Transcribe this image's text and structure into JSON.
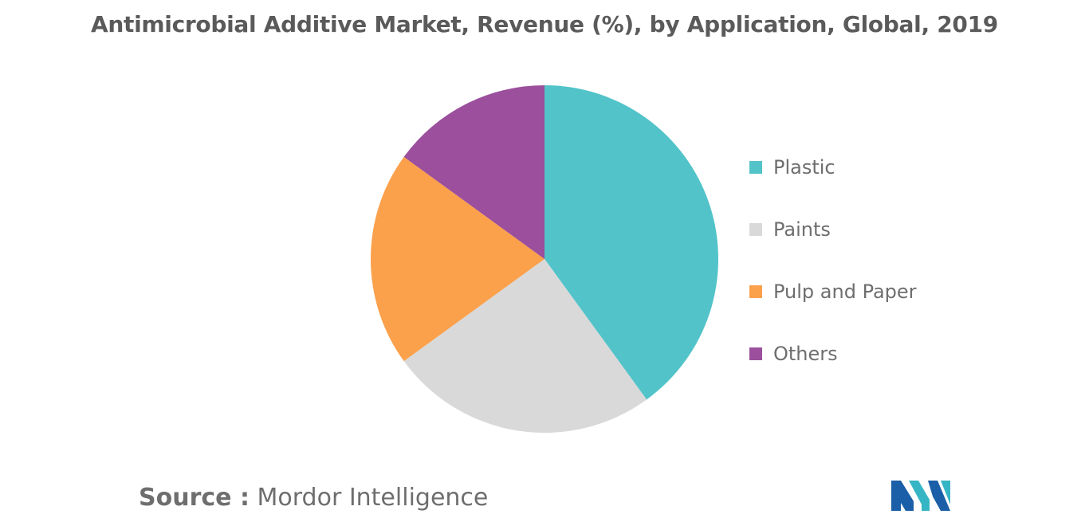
{
  "chart_data": {
    "type": "pie",
    "title": "Antimicrobial Additive Market, Revenue (%), by Application, Global, 2019",
    "slices": [
      {
        "label": "Plastic",
        "value": 40,
        "color": "#52c3c9"
      },
      {
        "label": "Paints",
        "value": 25,
        "color": "#d9d9d9"
      },
      {
        "label": "Pulp and Paper",
        "value": 20,
        "color": "#fba04b"
      },
      {
        "label": "Others",
        "value": 15,
        "color": "#9b4f9c"
      }
    ],
    "legend_position": "right"
  },
  "source": {
    "prefix": "Source :",
    "name": "Mordor Intelligence"
  },
  "logo": {
    "colors": [
      "#1a5fa8",
      "#36b6c5"
    ]
  }
}
